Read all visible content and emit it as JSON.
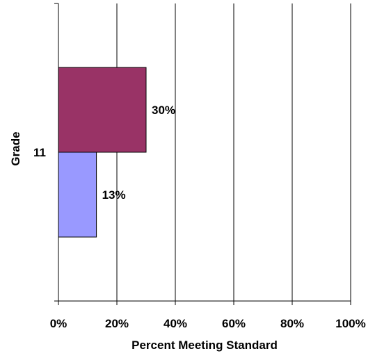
{
  "chart_data": {
    "type": "bar",
    "orientation": "horizontal",
    "categories": [
      "11"
    ],
    "series": [
      {
        "values": [
          13
        ],
        "color": "#9999FF",
        "label": "13%"
      },
      {
        "values": [
          30
        ],
        "color": "#993366",
        "label": "30%"
      }
    ],
    "xlabel": "Percent Meeting Standard",
    "ylabel": "Grade",
    "xlim": [
      0,
      100
    ],
    "x_ticks": [
      0,
      20,
      40,
      60,
      80,
      100
    ],
    "x_tick_labels": [
      "0%",
      "20%",
      "40%",
      "60%",
      "80%",
      "100%"
    ],
    "grid": "vertical",
    "legend": "none"
  }
}
